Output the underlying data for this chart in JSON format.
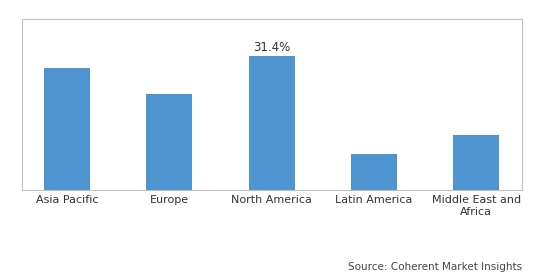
{
  "categories": [
    "Asia Pacific",
    "Europe",
    "North America",
    "Latin America",
    "Middle East and\nAfrica"
  ],
  "values": [
    28.5,
    22.5,
    31.4,
    8.5,
    13.0
  ],
  "bar_color": "#4d94d0",
  "annotation_index": 2,
  "annotation_text": "31.4%",
  "annotation_fontsize": 8.5,
  "ylim": [
    0,
    40
  ],
  "source_text": "Source: Coherent Market Insights",
  "source_fontsize": 7.5,
  "tick_fontsize": 8,
  "background_color": "#ffffff",
  "bar_width": 0.45,
  "border_color": "#c0c0c0",
  "bottom_line_color": "#aaaaaa"
}
